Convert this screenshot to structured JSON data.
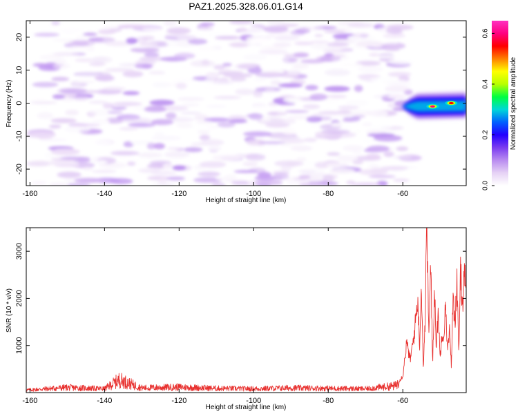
{
  "title": "PAZ1.2025.328.06.01.G14",
  "chart_data": [
    {
      "type": "heatmap",
      "xlabel": "Height of straight line (km)",
      "ylabel": "Frequency (Hz)",
      "xlim": [
        -161,
        -43
      ],
      "ylim": [
        -25,
        25
      ],
      "x_ticks": [
        -160,
        -140,
        -120,
        -100,
        -80,
        -60
      ],
      "y_ticks": [
        -20,
        -10,
        0,
        10,
        20
      ],
      "colorbar": {
        "label": "Normalized spectral amplitude",
        "range": [
          0,
          0.65
        ],
        "ticks": [
          0.0,
          0.2,
          0.4,
          0.6
        ],
        "colors": [
          "#ffffff",
          "#e6d2f5",
          "#b98cf0",
          "#7b3cf0",
          "#2400ff",
          "#0060ff",
          "#00d8d8",
          "#00ff40",
          "#b8ff00",
          "#ffff00",
          "#ff8000",
          "#ff0000",
          "#ff0080",
          "#ff30c0"
        ]
      },
      "features": {
        "background_amplitude_range": [
          0.0,
          0.1
        ],
        "background_x_range": [
          -158,
          -58
        ],
        "signal": {
          "x_range": [
            -60,
            -43
          ],
          "frequency_center_hz": -1,
          "frequency_halfwidth_hz": 3,
          "peak_amplitude": 0.6,
          "peaks": [
            {
              "x": -52,
              "y": -1,
              "amplitude": 0.6
            },
            {
              "x": -47,
              "y": 0,
              "amplitude": 0.55
            }
          ]
        }
      }
    },
    {
      "type": "line",
      "xlabel": "Height of straight line (km)",
      "ylabel": "SNR (10 * v/v)",
      "xlim": [
        -161,
        -43
      ],
      "ylim": [
        0,
        3500
      ],
      "x_ticks": [
        -160,
        -140,
        -120,
        -100,
        -80,
        -60
      ],
      "y_ticks": [
        1000,
        2000,
        3000
      ],
      "color": "#e8312f",
      "series": [
        {
          "x": [
            -161,
            -150,
            -140,
            -136,
            -130,
            -120,
            -110,
            -100,
            -90,
            -80,
            -70,
            -62,
            -60,
            -59,
            -58,
            -57,
            -56.5,
            -56,
            -55.5,
            -55,
            -54.5,
            -54,
            -53.8,
            -53.6,
            -53.3,
            -53,
            -52.5,
            -52,
            -51.5,
            -51,
            -50.5,
            -50,
            -49.5,
            -49,
            -48.5,
            -48,
            -47.5,
            -47,
            -46.5,
            -46,
            -45.5,
            -45,
            -44.5,
            -44,
            -43.5,
            -43
          ],
          "y": [
            60,
            120,
            90,
            300,
            110,
            130,
            100,
            90,
            110,
            100,
            90,
            160,
            350,
            1050,
            700,
            1200,
            1600,
            2000,
            1000,
            2300,
            500,
            1500,
            3100,
            3480,
            2500,
            1200,
            2700,
            600,
            2300,
            900,
            1800,
            700,
            1300,
            1200,
            1900,
            850,
            1300,
            600,
            2000,
            1500,
            2400,
            800,
            2600,
            1800,
            2700,
            1900
          ]
        }
      ]
    }
  ]
}
